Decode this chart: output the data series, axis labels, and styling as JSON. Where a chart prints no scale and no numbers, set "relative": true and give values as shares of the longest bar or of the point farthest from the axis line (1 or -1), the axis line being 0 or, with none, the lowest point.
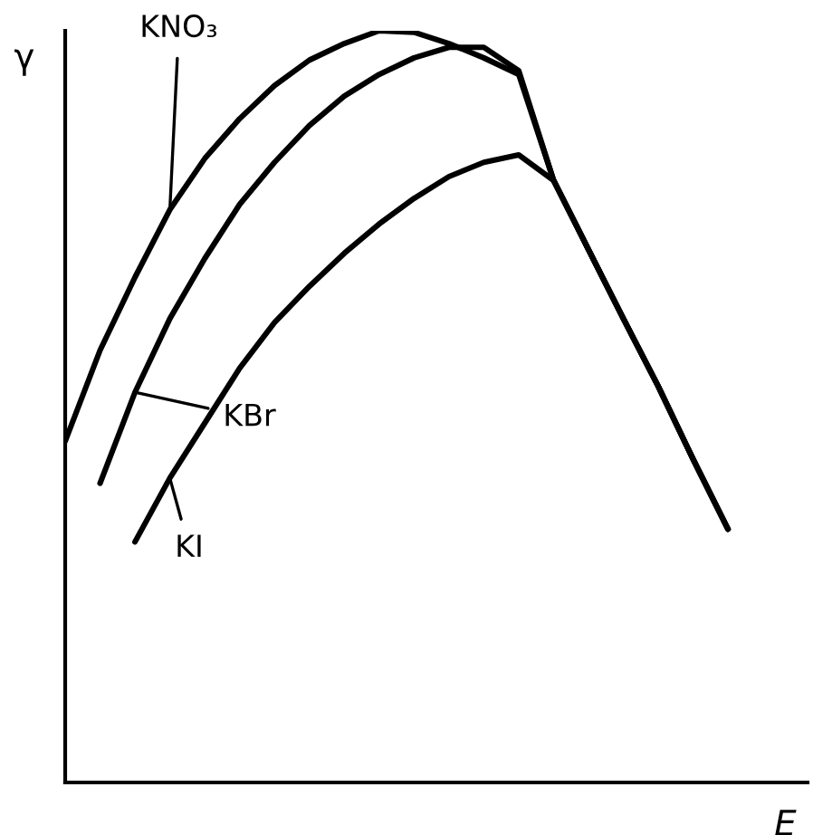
{
  "chart_data": {
    "type": "line",
    "relative": true,
    "xlabel": "E",
    "ylabel": "γ",
    "categories": [
      null,
      null,
      null,
      null,
      null,
      null,
      null,
      null,
      null,
      null,
      null,
      null,
      null,
      null,
      null,
      null,
      null,
      null,
      null,
      null
    ],
    "series": [
      {
        "name": "KNO₃",
        "color": "#000000",
        "values": [
          0.454,
          0.575,
          0.672,
          0.762,
          0.83,
          0.883,
          0.927,
          0.961,
          0.983,
          1.0,
          0.998,
          0.983,
          0.964,
          0.942,
          0.801,
          0.709,
          0.617,
          0.527,
          0.43,
          0.337
        ]
      },
      {
        "name": "KBr",
        "color": "#000000",
        "values": [
          null,
          0.398,
          0.519,
          0.617,
          0.697,
          0.769,
          0.825,
          0.874,
          0.913,
          0.942,
          0.964,
          0.978,
          0.978,
          0.947,
          0.801,
          0.709,
          0.617,
          0.527,
          0.43,
          0.337
        ]
      },
      {
        "name": "KI",
        "color": "#000000",
        "values": [
          null,
          null,
          0.32,
          0.405,
          0.478,
          0.551,
          0.612,
          0.66,
          0.704,
          0.743,
          0.777,
          0.806,
          0.825,
          0.835,
          0.801,
          0.709,
          0.617,
          0.527,
          0.43,
          0.337
        ]
      }
    ]
  }
}
